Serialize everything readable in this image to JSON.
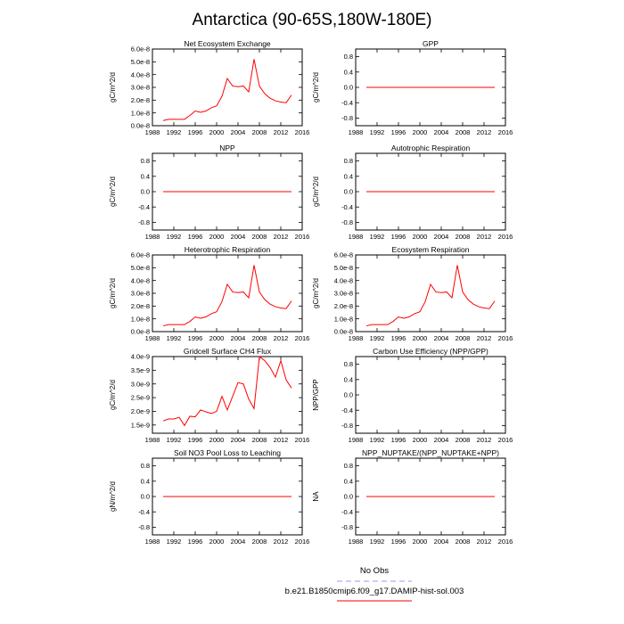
{
  "figure_title": "Antarctica (90-65S,180W-180E)",
  "colors": {
    "model": "#ff0000",
    "obs": "#9999ee",
    "axis": "#000000"
  },
  "legend": {
    "obs_label": "No Obs",
    "model_label": "b.e21.B1850cmip6.f09_g17.DAMIP-hist-sol.003"
  },
  "chart_data": [
    {
      "type": "line",
      "title": "Net Ecosystem Exchange",
      "ylabel": "gC/m^2/d",
      "xlim": [
        1988,
        2016
      ],
      "xticks": [
        "1988",
        "1992",
        "1996",
        "2000",
        "2004",
        "2008",
        "2012",
        "2016"
      ],
      "ylim": [
        0,
        6e-08
      ],
      "yticks": [
        "0.0e-8",
        "1.0e-8",
        "2.0e-8",
        "3.0e-8",
        "4.0e-8",
        "5.0e-8",
        "6.0e-8"
      ],
      "series": [
        {
          "x": [
            1990,
            1991,
            1992,
            1993,
            1994,
            1995,
            1996,
            1997,
            1998,
            1999,
            2000,
            2001,
            2002,
            2003,
            2004,
            2005,
            2006,
            2007,
            2008,
            2009,
            2010,
            2011,
            2012,
            2013,
            2014
          ],
          "values": [
            4e-09,
            5e-09,
            5e-09,
            5e-09,
            5e-09,
            8e-09,
            1.15e-08,
            1.05e-08,
            1.15e-08,
            1.4e-08,
            1.55e-08,
            2.3e-08,
            3.7e-08,
            3.1e-08,
            3.05e-08,
            3.1e-08,
            2.65e-08,
            5.2e-08,
            3.1e-08,
            2.5e-08,
            2.15e-08,
            1.95e-08,
            1.85e-08,
            1.8e-08,
            2.4e-08
          ]
        }
      ]
    },
    {
      "type": "line",
      "title": "GPP",
      "ylabel": "gC/m^2/d",
      "xlim": [
        1988,
        2016
      ],
      "xticks": [
        "1988",
        "1992",
        "1996",
        "2000",
        "2004",
        "2008",
        "2012",
        "2016"
      ],
      "ylim": [
        -1,
        1
      ],
      "yticks": [
        "-0.8",
        "-0.4",
        "0.0",
        "0.4",
        "0.8"
      ],
      "series": [
        {
          "x": [
            1990,
            2014
          ],
          "values": [
            0,
            0
          ]
        }
      ]
    },
    {
      "type": "line",
      "title": "NPP",
      "ylabel": "gC/m^2/d",
      "xlim": [
        1988,
        2016
      ],
      "xticks": [
        "1988",
        "1992",
        "1996",
        "2000",
        "2004",
        "2008",
        "2012",
        "2016"
      ],
      "ylim": [
        -1,
        1
      ],
      "yticks": [
        "-0.8",
        "-0.4",
        "0.0",
        "0.4",
        "0.8"
      ],
      "series": [
        {
          "x": [
            1990,
            2014
          ],
          "values": [
            0,
            0
          ]
        }
      ]
    },
    {
      "type": "line",
      "title": "Autotrophic Respiration",
      "ylabel": "gC/m^2/d",
      "xlim": [
        1988,
        2016
      ],
      "xticks": [
        "1988",
        "1992",
        "1996",
        "2000",
        "2004",
        "2008",
        "2012",
        "2016"
      ],
      "ylim": [
        -1,
        1
      ],
      "yticks": [
        "-0.8",
        "-0.4",
        "0.0",
        "0.4",
        "0.8"
      ],
      "series": [
        {
          "x": [
            1990,
            2014
          ],
          "values": [
            0,
            0
          ]
        }
      ]
    },
    {
      "type": "line",
      "title": "Heterotrophic Respiration",
      "ylabel": "gC/m^2/d",
      "xlim": [
        1988,
        2016
      ],
      "xticks": [
        "1988",
        "1992",
        "1996",
        "2000",
        "2004",
        "2008",
        "2012",
        "2016"
      ],
      "ylim": [
        0,
        6e-08
      ],
      "yticks": [
        "0.0e-8",
        "1.0e-8",
        "2.0e-8",
        "3.0e-8",
        "4.0e-8",
        "5.0e-8",
        "6.0e-8"
      ],
      "series": [
        {
          "x": [
            1990,
            1991,
            1992,
            1993,
            1994,
            1995,
            1996,
            1997,
            1998,
            1999,
            2000,
            2001,
            2002,
            2003,
            2004,
            2005,
            2006,
            2007,
            2008,
            2009,
            2010,
            2011,
            2012,
            2013,
            2014
          ],
          "values": [
            4.5e-09,
            5.5e-09,
            5.5e-09,
            5.5e-09,
            5.5e-09,
            8e-09,
            1.15e-08,
            1.05e-08,
            1.15e-08,
            1.4e-08,
            1.55e-08,
            2.35e-08,
            3.7e-08,
            3.1e-08,
            3.05e-08,
            3.1e-08,
            2.65e-08,
            5.2e-08,
            3.1e-08,
            2.5e-08,
            2.15e-08,
            1.95e-08,
            1.85e-08,
            1.8e-08,
            2.4e-08
          ]
        }
      ]
    },
    {
      "type": "line",
      "title": "Ecosystem Respiration",
      "ylabel": "gC/m^2/d",
      "xlim": [
        1988,
        2016
      ],
      "xticks": [
        "1988",
        "1992",
        "1996",
        "2000",
        "2004",
        "2008",
        "2012",
        "2016"
      ],
      "ylim": [
        0,
        6e-08
      ],
      "yticks": [
        "0.0e-8",
        "1.0e-8",
        "2.0e-8",
        "3.0e-8",
        "4.0e-8",
        "5.0e-8",
        "6.0e-8"
      ],
      "series": [
        {
          "x": [
            1990,
            1991,
            1992,
            1993,
            1994,
            1995,
            1996,
            1997,
            1998,
            1999,
            2000,
            2001,
            2002,
            2003,
            2004,
            2005,
            2006,
            2007,
            2008,
            2009,
            2010,
            2011,
            2012,
            2013,
            2014
          ],
          "values": [
            4.5e-09,
            5.5e-09,
            5.5e-09,
            5.5e-09,
            5.5e-09,
            8e-09,
            1.15e-08,
            1.05e-08,
            1.15e-08,
            1.4e-08,
            1.55e-08,
            2.35e-08,
            3.7e-08,
            3.1e-08,
            3.05e-08,
            3.1e-08,
            2.65e-08,
            5.2e-08,
            3.1e-08,
            2.5e-08,
            2.15e-08,
            1.95e-08,
            1.85e-08,
            1.8e-08,
            2.4e-08
          ]
        }
      ]
    },
    {
      "type": "line",
      "title": "Gridcell Surface CH4 Flux",
      "ylabel": "gC/m^2/d",
      "xlim": [
        1988,
        2016
      ],
      "xticks": [
        "1988",
        "1992",
        "1996",
        "2000",
        "2004",
        "2008",
        "2012",
        "2016"
      ],
      "ylim": [
        1.2e-09,
        4e-09
      ],
      "yticks": [
        "1.5e-9",
        "2.0e-9",
        "2.5e-9",
        "3.0e-9",
        "3.5e-9",
        "4.0e-9"
      ],
      "series": [
        {
          "x": [
            1990,
            1991,
            1992,
            1993,
            1994,
            1995,
            1996,
            1997,
            1998,
            1999,
            2000,
            2001,
            2002,
            2003,
            2004,
            2005,
            2006,
            2007,
            2008,
            2009,
            2010,
            2011,
            2012,
            2013,
            2014
          ],
          "values": [
            1.65e-09,
            1.72e-09,
            1.72e-09,
            1.78e-09,
            1.48e-09,
            1.82e-09,
            1.8e-09,
            2.05e-09,
            1.98e-09,
            1.92e-09,
            2e-09,
            2.55e-09,
            2.05e-09,
            2.55e-09,
            3.05e-09,
            3e-09,
            2.45e-09,
            2.1e-09,
            4e-09,
            3.85e-09,
            3.6e-09,
            3.25e-09,
            3.85e-09,
            3.15e-09,
            2.85e-09
          ]
        }
      ]
    },
    {
      "type": "line",
      "title": "Carbon Use Efficiency (NPP/GPP)",
      "ylabel": "NPP/GPP",
      "xlim": [
        1988,
        2016
      ],
      "xticks": [
        "1988",
        "1992",
        "1996",
        "2000",
        "2004",
        "2008",
        "2012",
        "2016"
      ],
      "ylim": [
        -1,
        1
      ],
      "yticks": [
        "-0.8",
        "-0.4",
        "0.0",
        "0.4",
        "0.8"
      ],
      "series": []
    },
    {
      "type": "line",
      "title": "Soil NO3 Pool Loss to Leaching",
      "ylabel": "gN/m^2/d",
      "xlim": [
        1988,
        2016
      ],
      "xticks": [
        "1988",
        "1992",
        "1996",
        "2000",
        "2004",
        "2008",
        "2012",
        "2016"
      ],
      "ylim": [
        -1,
        1
      ],
      "yticks": [
        "-0.8",
        "-0.4",
        "0.0",
        "0.4",
        "0.8"
      ],
      "series": [
        {
          "x": [
            1990,
            2014
          ],
          "values": [
            0,
            0
          ]
        }
      ]
    },
    {
      "type": "line",
      "title": "NPP_NUPTAKE/(NPP_NUPTAKE+NPP)",
      "ylabel": "NA",
      "xlim": [
        1988,
        2016
      ],
      "xticks": [
        "1988",
        "1992",
        "1996",
        "2000",
        "2004",
        "2008",
        "2012",
        "2016"
      ],
      "ylim": [
        -1,
        1
      ],
      "yticks": [
        "-0.8",
        "-0.4",
        "0.0",
        "0.4",
        "0.8"
      ],
      "series": [
        {
          "x": [
            1990,
            2014
          ],
          "values": [
            0,
            0
          ]
        }
      ]
    }
  ]
}
